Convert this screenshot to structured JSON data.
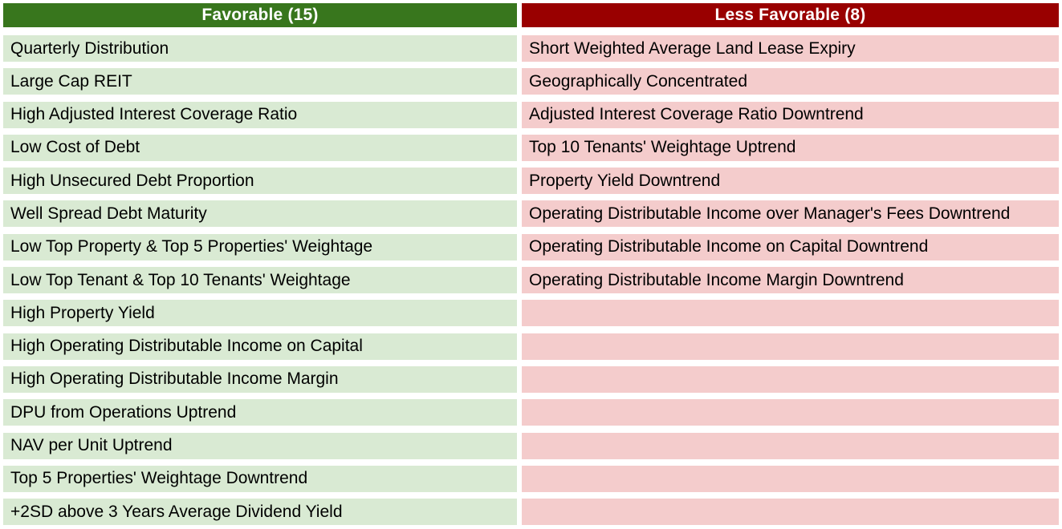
{
  "table": {
    "row_count": 15,
    "columns": [
      {
        "id": "favorable",
        "header": "Favorable (15)",
        "header_bg": "#38761D",
        "row_bg": "#D9EAD3",
        "items": [
          "Quarterly Distribution",
          "Large Cap REIT",
          "High Adjusted Interest Coverage Ratio",
          "Low Cost of Debt",
          "High Unsecured Debt Proportion",
          "Well Spread Debt Maturity",
          "Low Top Property & Top 5 Properties' Weightage",
          "Low Top Tenant & Top 10 Tenants' Weightage",
          "High Property Yield",
          "High Operating Distributable Income on Capital",
          "High Operating Distributable Income Margin",
          "DPU from Operations Uptrend",
          "NAV per Unit Uptrend",
          "Top 5 Properties' Weightage Downtrend",
          "+2SD above 3 Years Average Dividend Yield"
        ]
      },
      {
        "id": "less-favorable",
        "header": "Less Favorable (8)",
        "header_bg": "#990000",
        "row_bg": "#F4CCCC",
        "items": [
          "Short Weighted Average Land Lease Expiry",
          "Geographically Concentrated",
          "Adjusted Interest Coverage Ratio Downtrend",
          "Top 10 Tenants' Weightage Uptrend",
          "Property Yield Downtrend",
          "Operating Distributable Income over Manager's Fees Downtrend",
          "Operating Distributable Income on Capital Downtrend",
          "Operating Distributable Income Margin Downtrend"
        ]
      }
    ]
  },
  "colors": {
    "page_background": "#FFFFFF",
    "header_text": "#FFFFFF",
    "row_text": "#000000",
    "favorable_header_bg": "#38761D",
    "favorable_row_bg": "#D9EAD3",
    "less_favorable_header_bg": "#990000",
    "less_favorable_row_bg": "#F4CCCC"
  },
  "chart_data": {
    "type": "table",
    "columns": [
      "Favorable (15)",
      "Less Favorable (8)"
    ],
    "series": [
      {
        "name": "Favorable",
        "count": 15,
        "values": [
          "Quarterly Distribution",
          "Large Cap REIT",
          "High Adjusted Interest Coverage Ratio",
          "Low Cost of Debt",
          "High Unsecured Debt Proportion",
          "Well Spread Debt Maturity",
          "Low Top Property & Top 5 Properties' Weightage",
          "Low Top Tenant & Top 10 Tenants' Weightage",
          "High Property Yield",
          "High Operating Distributable Income on Capital",
          "High Operating Distributable Income Margin",
          "DPU from Operations Uptrend",
          "NAV per Unit Uptrend",
          "Top 5 Properties' Weightage Downtrend",
          "+2SD above 3 Years Average Dividend Yield"
        ]
      },
      {
        "name": "Less Favorable",
        "count": 8,
        "values": [
          "Short Weighted Average Land Lease Expiry",
          "Geographically Concentrated",
          "Adjusted Interest Coverage Ratio Downtrend",
          "Top 10 Tenants' Weightage Uptrend",
          "Property Yield Downtrend",
          "Operating Distributable Income over Manager's Fees Downtrend",
          "Operating Distributable Income on Capital Downtrend",
          "Operating Distributable Income Margin Downtrend"
        ]
      }
    ],
    "layout": "two-column comparison table, header row colored, body rows tinted, empty filler rows pad the shorter column"
  }
}
